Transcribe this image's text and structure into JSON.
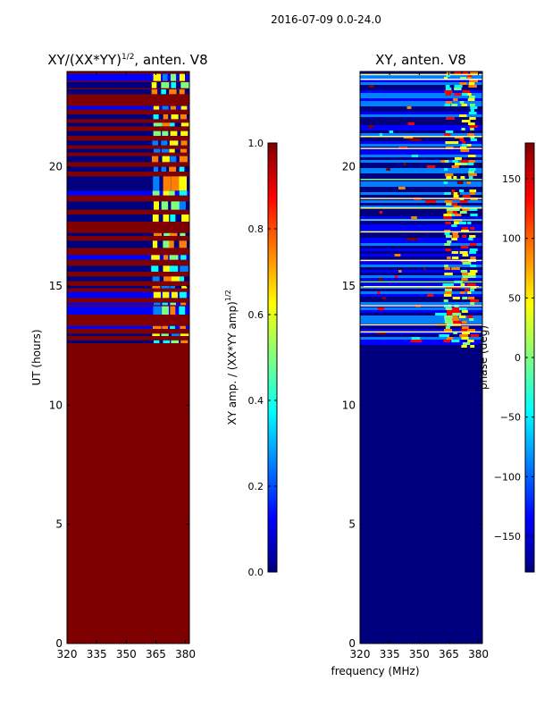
{
  "suptitle": "2016-07-09 0.0-24.0",
  "colors": {
    "jet": [
      "#00007f",
      "#0000ff",
      "#007fff",
      "#00ffff",
      "#7fff7f",
      "#ffff00",
      "#ff7f00",
      "#ff0000",
      "#7f0000"
    ],
    "frame": "#000000",
    "dark_red": "#7f0000",
    "dark_blue": "#00007f"
  },
  "chart_data": [
    {
      "type": "heatmap",
      "name": "amplitude",
      "title": "XY/(XX*YY)",
      "title_superscript": "1/2",
      "title_suffix": ", anten. V8",
      "xlabel": "",
      "ylabel": "UT (hours)",
      "xlim": [
        320,
        382
      ],
      "ylim": [
        0,
        24
      ],
      "xticks": [
        320,
        335,
        350,
        365,
        380
      ],
      "yticks": [
        0,
        5,
        10,
        15,
        20
      ],
      "background_value": 1.0,
      "bands": [
        {
          "y": 12.6,
          "h": 0.12
        },
        {
          "y": 12.9,
          "h": 0.1
        },
        {
          "y": 13.2,
          "h": 0.12
        },
        {
          "y": 13.8,
          "h": 0.35
        },
        {
          "y": 14.2,
          "h": 0.1
        },
        {
          "y": 14.5,
          "h": 0.25
        },
        {
          "y": 14.9,
          "h": 0.1
        },
        {
          "y": 15.2,
          "h": 0.2
        },
        {
          "y": 15.6,
          "h": 0.25
        },
        {
          "y": 16.1,
          "h": 0.2
        },
        {
          "y": 16.6,
          "h": 0.3
        },
        {
          "y": 17.1,
          "h": 0.12
        },
        {
          "y": 17.7,
          "h": 0.3
        },
        {
          "y": 18.2,
          "h": 0.35
        },
        {
          "y": 18.8,
          "h": 0.2
        },
        {
          "y": 19.0,
          "h": 0.6
        },
        {
          "y": 19.8,
          "h": 0.2
        },
        {
          "y": 20.2,
          "h": 0.25
        },
        {
          "y": 20.6,
          "h": 0.15
        },
        {
          "y": 20.9,
          "h": 0.2
        },
        {
          "y": 21.3,
          "h": 0.2
        },
        {
          "y": 21.7,
          "h": 0.15
        },
        {
          "y": 22.0,
          "h": 0.2
        },
        {
          "y": 22.4,
          "h": 0.15
        },
        {
          "y": 23.05,
          "h": 0.2
        },
        {
          "y": 23.3,
          "h": 0.25
        },
        {
          "y": 23.6,
          "h": 0.3
        }
      ],
      "hot_columns": [
        364,
        369,
        373,
        378
      ]
    },
    {
      "type": "heatmap",
      "name": "phase",
      "title": "XY, anten. V8",
      "xlabel": "frequency (MHz)",
      "ylabel": "",
      "xlim": [
        320,
        382
      ],
      "ylim": [
        0,
        24
      ],
      "xticks": [
        320,
        335,
        350,
        365,
        380
      ],
      "yticks": [
        0,
        5,
        10,
        15,
        20
      ],
      "background_value": -180,
      "data_start_hour": 12.5,
      "lines": [
        13.1,
        13.4,
        14.2,
        15.0,
        15.2,
        16.1,
        17.3,
        17.8,
        18.3,
        18.7,
        19.5,
        20.8,
        21.3,
        23.7,
        23.9
      ],
      "hot_columns": [
        364,
        368,
        372,
        376
      ]
    }
  ],
  "colorbars": [
    {
      "name": "amplitude-colorbar",
      "label": "XY amp. / (XX*YY amp)",
      "label_superscript": "1/2",
      "range": [
        0.0,
        1.0
      ],
      "ticks": [
        "0.0",
        "0.2",
        "0.4",
        "0.6",
        "0.8",
        "1.0"
      ]
    },
    {
      "name": "phase-colorbar",
      "label": "phase (deg)",
      "range": [
        -180,
        180
      ],
      "ticks": [
        "−150",
        "−100",
        "−50",
        "0",
        "50",
        "100",
        "150"
      ]
    }
  ]
}
